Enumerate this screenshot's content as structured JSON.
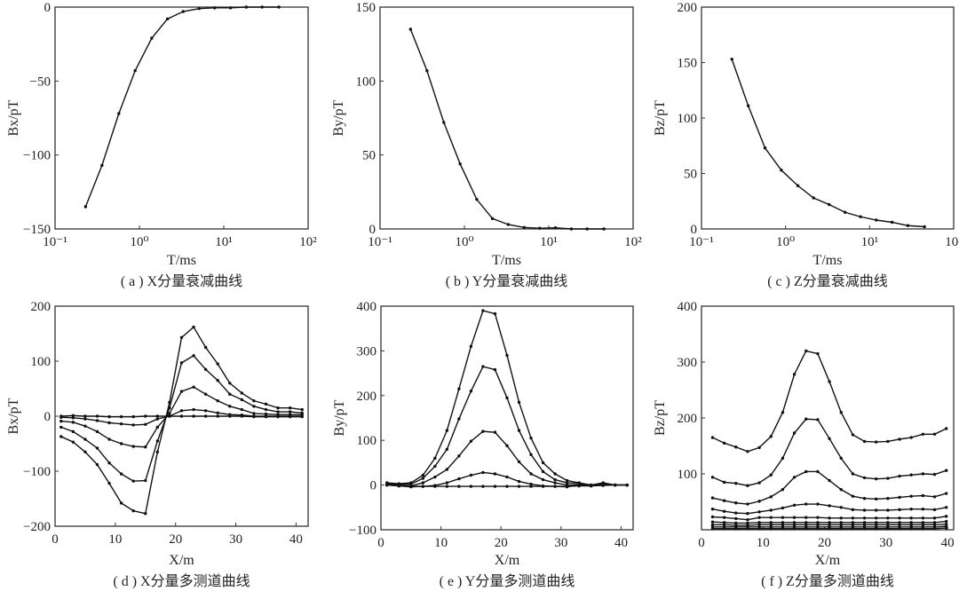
{
  "chart_data": [
    {
      "type": "line",
      "caption": "( a ) X分量衰减曲线",
      "xlabel": "T/ms",
      "ylabel": "Bx/pT",
      "xscale": "log",
      "xlim": [
        0.1,
        100
      ],
      "ylim": [
        -150,
        0
      ],
      "xticks": [
        0.1,
        1,
        10,
        100
      ],
      "xticklabels": [
        "10⁻¹",
        "10⁰",
        "10¹",
        "10²"
      ],
      "yticks": [
        -150,
        -100,
        -50,
        0
      ],
      "yticklabels": [
        "−150",
        "−100",
        "−50",
        "0"
      ],
      "grid": false,
      "x": [
        0.23,
        0.36,
        0.57,
        0.89,
        1.4,
        2.15,
        3.3,
        5.1,
        7.8,
        12,
        18.5,
        28.5,
        45
      ],
      "series": [
        {
          "values": [
            -135,
            -107,
            -72,
            -43,
            -21,
            -8,
            -3,
            -1,
            -0.5,
            -0.5,
            0,
            0,
            0
          ]
        }
      ]
    },
    {
      "type": "line",
      "caption": "( b ) Y分量衰减曲线",
      "xlabel": "T/ms",
      "ylabel": "By/pT",
      "xscale": "log",
      "xlim": [
        0.1,
        100
      ],
      "ylim": [
        0,
        150
      ],
      "xticks": [
        0.1,
        1,
        10,
        100
      ],
      "xticklabels": [
        "10⁻¹",
        "10⁰",
        "10¹",
        "10²"
      ],
      "yticks": [
        0,
        50,
        100,
        150
      ],
      "yticklabels": [
        "0",
        "50",
        "100",
        "150"
      ],
      "grid": false,
      "x": [
        0.23,
        0.36,
        0.57,
        0.89,
        1.4,
        2.15,
        3.3,
        5.1,
        7.8,
        12,
        18.5,
        28.5,
        45
      ],
      "series": [
        {
          "values": [
            135,
            107,
            72,
            44,
            20,
            7,
            3,
            1,
            0.5,
            0.8,
            0,
            0,
            0
          ]
        }
      ]
    },
    {
      "type": "line",
      "caption": "( c ) Z分量衰减曲线",
      "xlabel": "T/ms",
      "ylabel": "Bz/pT",
      "xscale": "log",
      "xlim": [
        0.1,
        100
      ],
      "ylim": [
        0,
        200
      ],
      "xticks": [
        0.1,
        1,
        10,
        100
      ],
      "xticklabels": [
        "10⁻¹",
        "10⁰",
        "10¹",
        "10²"
      ],
      "yticks": [
        0,
        50,
        100,
        150,
        200
      ],
      "yticklabels": [
        "0",
        "50",
        "100",
        "150",
        "200"
      ],
      "grid": false,
      "x": [
        0.23,
        0.36,
        0.57,
        0.89,
        1.4,
        2.15,
        3.3,
        5.1,
        7.8,
        12,
        18.5,
        28.5,
        45
      ],
      "series": [
        {
          "values": [
            153,
            111,
            73,
            53,
            39,
            28,
            22,
            15,
            11,
            8,
            6,
            3,
            2
          ]
        }
      ]
    },
    {
      "type": "line",
      "caption": "( d ) X分量多测道曲线",
      "xlabel": "X/m",
      "ylabel": "Bx/pT",
      "xscale": "linear",
      "xlim": [
        0,
        42
      ],
      "ylim": [
        -200,
        200
      ],
      "xticks": [
        0,
        10,
        20,
        30,
        40
      ],
      "xticklabels": [
        "0",
        "10",
        "20",
        "30",
        "40"
      ],
      "yticks": [
        -200,
        -100,
        0,
        100,
        200
      ],
      "yticklabels": [
        "−200",
        "−100",
        "0",
        "100",
        "200"
      ],
      "grid": false,
      "x": [
        1,
        3,
        5,
        7,
        9,
        11,
        13,
        15,
        17,
        19,
        21,
        23,
        25,
        27,
        29,
        31,
        33,
        35,
        37,
        39,
        41
      ],
      "series": [
        {
          "values": [
            -37,
            -47,
            -65,
            -88,
            -122,
            -158,
            -172,
            -177,
            -65,
            25,
            143,
            162,
            125,
            95,
            60,
            42,
            28,
            22,
            15,
            15,
            12
          ]
        },
        {
          "values": [
            -20,
            -28,
            -42,
            -58,
            -85,
            -105,
            -118,
            -117,
            -45,
            15,
            97,
            110,
            85,
            65,
            40,
            30,
            18,
            12,
            8,
            8,
            6
          ]
        },
        {
          "values": [
            -9,
            -11,
            -18,
            -28,
            -42,
            -50,
            -55,
            -56,
            -20,
            5,
            45,
            53,
            40,
            28,
            18,
            12,
            5,
            4,
            3,
            3,
            3
          ]
        },
        {
          "values": [
            -2,
            -3,
            -5,
            -8,
            -12,
            -14,
            -16,
            -15,
            -5,
            0,
            10,
            12,
            10,
            6,
            3,
            2,
            0,
            0,
            0,
            0,
            0
          ]
        },
        {
          "values": [
            0,
            1,
            0,
            0,
            -1,
            -1,
            -1,
            0,
            0,
            0,
            0,
            0,
            0,
            0,
            0,
            0,
            -1,
            -1,
            -1,
            -1,
            -1
          ]
        }
      ]
    },
    {
      "type": "line",
      "caption": "( e ) Y分量多测道曲线",
      "xlabel": "X/m",
      "ylabel": "By/pT",
      "xscale": "linear",
      "xlim": [
        0,
        42
      ],
      "ylim": [
        -100,
        400
      ],
      "xticks": [
        0,
        10,
        20,
        30,
        40
      ],
      "xticklabels": [
        "0",
        "10",
        "20",
        "30",
        "40"
      ],
      "yticks": [
        -100,
        0,
        100,
        200,
        300,
        400
      ],
      "yticklabels": [
        "−100",
        "0",
        "100",
        "200",
        "300",
        "400"
      ],
      "grid": false,
      "x": [
        1,
        3,
        5,
        7,
        9,
        11,
        13,
        15,
        17,
        19,
        21,
        23,
        25,
        27,
        29,
        31,
        33,
        35,
        37,
        39,
        41
      ],
      "series": [
        {
          "values": [
            5,
            3,
            5,
            22,
            60,
            122,
            215,
            310,
            390,
            383,
            290,
            185,
            105,
            50,
            25,
            10,
            5,
            0,
            5,
            0,
            0
          ]
        },
        {
          "values": [
            3,
            2,
            2,
            15,
            42,
            80,
            148,
            210,
            265,
            258,
            195,
            122,
            68,
            30,
            12,
            5,
            3,
            0,
            3,
            0,
            0
          ]
        },
        {
          "values": [
            2,
            0,
            -2,
            5,
            18,
            35,
            65,
            98,
            120,
            118,
            88,
            52,
            25,
            12,
            5,
            0,
            0,
            0,
            2,
            0,
            0
          ]
        },
        {
          "values": [
            0,
            -2,
            -4,
            -3,
            -1,
            5,
            14,
            22,
            28,
            25,
            18,
            8,
            2,
            -2,
            -3,
            -4,
            0,
            -2,
            3,
            0,
            0
          ]
        },
        {
          "values": [
            0,
            -2,
            -3,
            -3,
            -3,
            -3,
            -3,
            -3,
            -3,
            -3,
            -3,
            -3,
            -3,
            -3,
            -3,
            -3,
            -2,
            -2,
            -1,
            0,
            0
          ]
        }
      ]
    },
    {
      "type": "line",
      "caption": "( f ) Z分量多测道曲线",
      "xlabel": "X/m",
      "ylabel": "Bz/pT",
      "xscale": "linear",
      "xlim": [
        0,
        41
      ],
      "ylim": [
        0,
        400
      ],
      "xticks": [
        0,
        10,
        20,
        30,
        40
      ],
      "xticklabels": [
        "0",
        "10",
        "20",
        "30",
        "40"
      ],
      "yticks": [
        100,
        200,
        300,
        400
      ],
      "yticklabels": [
        "100",
        "200",
        "300",
        "400"
      ],
      "grid": false,
      "x": [
        1.8,
        3.7,
        5.6,
        7.5,
        9.4,
        11.3,
        13.2,
        15.1,
        17,
        18.9,
        20.8,
        22.7,
        24.6,
        26.5,
        28.4,
        30.3,
        32.2,
        34.1,
        36,
        37.9,
        39.8
      ],
      "series": [
        {
          "values": [
            165,
            155,
            148,
            140,
            147,
            167,
            210,
            278,
            320,
            315,
            265,
            210,
            170,
            158,
            157,
            158,
            162,
            165,
            171,
            171,
            181
          ]
        },
        {
          "values": [
            94,
            85,
            83,
            79,
            84,
            98,
            128,
            173,
            198,
            197,
            163,
            128,
            100,
            93,
            91,
            92,
            96,
            98,
            100,
            99,
            106
          ]
        },
        {
          "values": [
            57,
            52,
            48,
            46,
            51,
            59,
            72,
            94,
            104,
            104,
            88,
            72,
            60,
            56,
            55,
            56,
            58,
            60,
            61,
            59,
            65
          ]
        },
        {
          "values": [
            37,
            33,
            30,
            29,
            32,
            35,
            39,
            44,
            46,
            46,
            43,
            40,
            36,
            35,
            35,
            35,
            36,
            37,
            37,
            36,
            40
          ]
        },
        {
          "values": [
            23,
            22,
            20,
            18,
            22,
            22,
            22,
            22,
            22,
            22,
            21,
            21,
            21,
            21,
            21,
            21,
            21,
            21,
            21,
            21,
            24
          ]
        },
        {
          "values": [
            14,
            13,
            12,
            12,
            13,
            13,
            13,
            13,
            13,
            13,
            13,
            13,
            13,
            13,
            13,
            13,
            13,
            13,
            13,
            13,
            15
          ]
        },
        {
          "values": [
            9,
            9,
            8,
            8,
            9,
            9,
            9,
            9,
            9,
            9,
            9,
            9,
            9,
            9,
            9,
            9,
            9,
            9,
            9,
            9,
            10
          ]
        },
        {
          "values": [
            5,
            5,
            5,
            5,
            5,
            5,
            5,
            5,
            5,
            5,
            5,
            5,
            5,
            5,
            5,
            5,
            5,
            5,
            5,
            5,
            6
          ]
        },
        {
          "values": [
            2,
            2,
            2,
            2,
            2,
            2,
            2,
            2,
            2,
            2,
            2,
            2,
            2,
            2,
            2,
            2,
            2,
            2,
            2,
            2,
            3
          ]
        }
      ]
    }
  ]
}
